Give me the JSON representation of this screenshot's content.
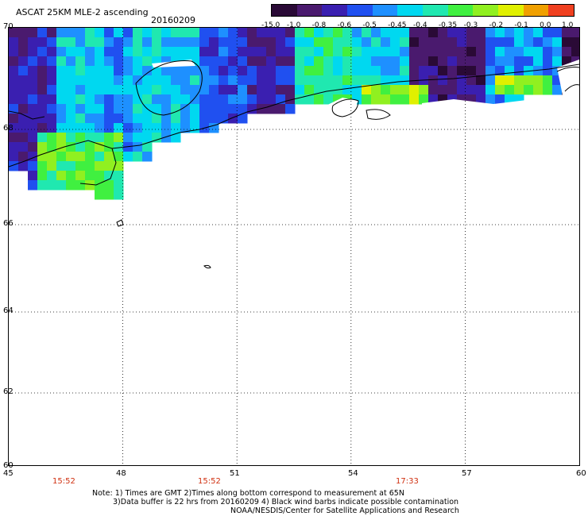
{
  "title": "ASCAT 25KM MLE-2 ascending",
  "date": "20160209",
  "colorbar": {
    "labels": [
      "-15.0",
      "-1.0",
      "-0.8",
      "-0.6",
      "-0.5",
      "-0.45",
      "-0.4",
      "-0.35",
      "-0.3",
      "-0.2",
      "-0.1",
      "0.0",
      "1.0"
    ],
    "colors": [
      "#2a0a36",
      "#4a1a6e",
      "#3a1fb0",
      "#2050f0",
      "#1e90ff",
      "#00d8f0",
      "#20e8b0",
      "#40f040",
      "#90f020",
      "#e0f000",
      "#f0a000",
      "#f04020"
    ]
  },
  "axes": {
    "lat_labels": [
      "70",
      "68",
      "66",
      "64",
      "62",
      "60"
    ],
    "lon_labels": [
      "45",
      "48",
      "51",
      "54",
      "57",
      "60"
    ],
    "lat_range": [
      60,
      70
    ],
    "lon_range": [
      45,
      60
    ]
  },
  "times": [
    "15:52",
    "15:52",
    "17:33"
  ],
  "notes": {
    "line1": "Note: 1) Times are GMT 2)Times along bottom correspond to measurement at 65N",
    "line2": "3)Data buffer is 22 hrs from 20160209 4) Black wind barbs indicate possible contamination",
    "line3": "NOAA/NESDIS/Center for Satellite Applications and Research"
  }
}
